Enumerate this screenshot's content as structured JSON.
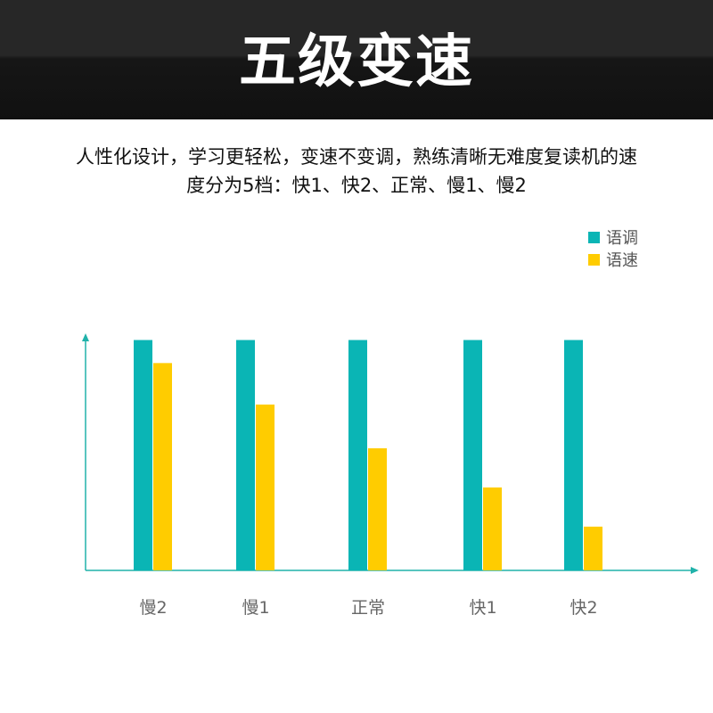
{
  "header": {
    "title": "五级变速"
  },
  "description": {
    "line1": "人性化设计，学习更轻松，变速不变调，熟练清晰无难度复读机的速",
    "line2": "度分为5档：快1、快2、正常、慢1、慢2"
  },
  "chart_data": {
    "type": "bar",
    "title": "",
    "xlabel": "",
    "ylabel": "",
    "categories": [
      "慢2",
      "慢1",
      "正常",
      "快1",
      "快2"
    ],
    "series": [
      {
        "name": "语调",
        "color": "#0ab5b5",
        "values": [
          100,
          100,
          100,
          100,
          100
        ]
      },
      {
        "name": "语速",
        "color": "#ffcc00",
        "values": [
          90,
          72,
          53,
          36,
          19
        ]
      }
    ],
    "ylim": [
      0,
      106
    ],
    "grid": false,
    "legend_position": "top-right",
    "axis_color": "#20b2aa",
    "label_color": "#666666"
  }
}
